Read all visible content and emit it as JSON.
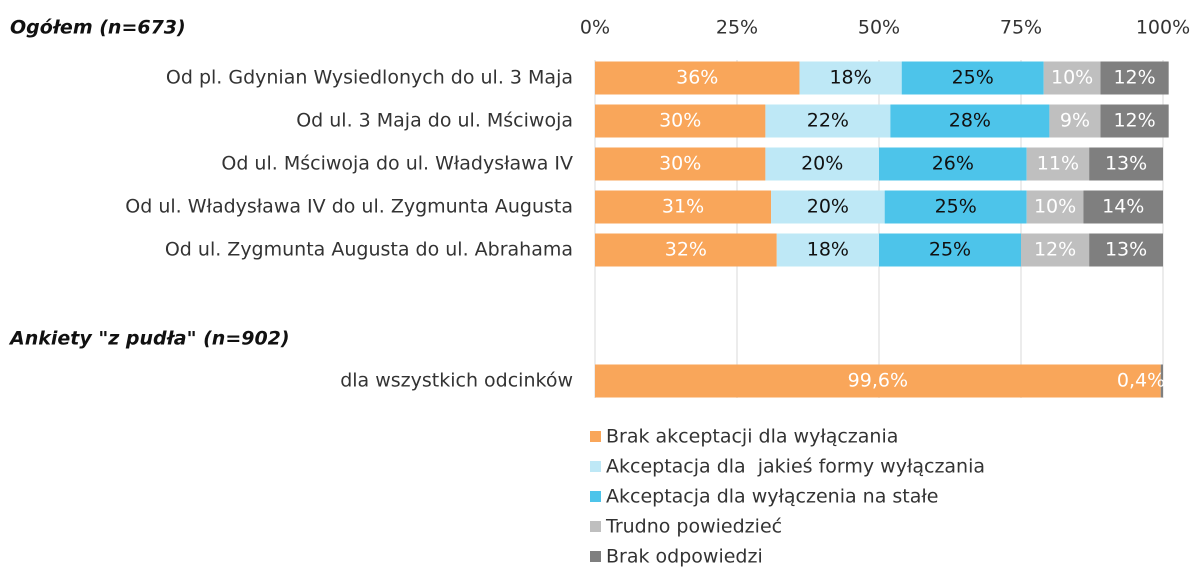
{
  "chart_data": {
    "type": "stacked-barh",
    "groups": [
      {
        "title": "Ogółem (n=673)"
      },
      {
        "title": "Ankiety \"z pudła\" (n=902)"
      }
    ],
    "categories": [
      "Od pl. Gdynian Wysiedlonych do ul. 3 Maja",
      "Od ul. 3 Maja do ul. Mściwoja",
      "Od ul. Mściwoja do ul. Władysława IV",
      "Od ul. Władysława IV do ul. Zygmunta Augusta",
      "Od ul. Zygmunta Augusta do ul. Abrahama",
      "dla wszystkich odcinków"
    ],
    "series": [
      {
        "name": "Brak akceptacji dla wyłączania",
        "color": "#f9a65a",
        "values": [
          36,
          30,
          30,
          31,
          32,
          99.6
        ],
        "value_labels": [
          "36%",
          "30%",
          "30%",
          "31%",
          "32%",
          "99,6%"
        ]
      },
      {
        "name": "Akceptacja dla  jakieś formy wyłączania",
        "color": "#bee8f6",
        "values": [
          18,
          22,
          20,
          20,
          18,
          null
        ],
        "value_labels": [
          "18%",
          "22%",
          "20%",
          "20%",
          "18%",
          null
        ]
      },
      {
        "name": "Akceptacja dla wyłączenia na stałe",
        "color": "#4dc4ea",
        "values": [
          25,
          28,
          26,
          25,
          25,
          null
        ],
        "value_labels": [
          "25%",
          "28%",
          "26%",
          "25%",
          "25%",
          null
        ]
      },
      {
        "name": "Trudno powiedzieć",
        "color": "#bfbfbf",
        "values": [
          10,
          9,
          11,
          10,
          12,
          null
        ],
        "value_labels": [
          "10%",
          "9%",
          "11%",
          "10%",
          "12%",
          null
        ]
      },
      {
        "name": "Brak odpowiedzi",
        "color": "#7f7f7f",
        "values": [
          12,
          12,
          13,
          14,
          13,
          0.4
        ],
        "value_labels": [
          "12%",
          "12%",
          "13%",
          "14%",
          "13%",
          "0,4%"
        ]
      }
    ],
    "xlim": [
      0,
      100
    ],
    "xticks": [
      {
        "value": 0,
        "label": "0%"
      },
      {
        "value": 25,
        "label": "25%"
      },
      {
        "value": 50,
        "label": "50%"
      },
      {
        "value": 75,
        "label": "75%"
      },
      {
        "value": 100,
        "label": "100%"
      }
    ],
    "grid": true
  }
}
